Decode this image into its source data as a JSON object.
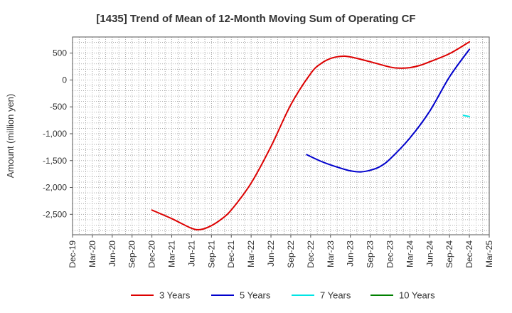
{
  "chart_data": {
    "type": "line",
    "title": "[1435]  Trend of Mean of 12-Month Moving Sum of Operating CF",
    "xlabel": "",
    "ylabel": "Amount (million yen)",
    "ylim": [
      -2880,
      800
    ],
    "y_ticks": [
      500,
      0,
      -500,
      -1000,
      -1500,
      -2000,
      -2500
    ],
    "y_tick_labels": [
      "500",
      "0",
      "-500",
      "-1,000",
      "-1,500",
      "-2,000",
      "-2,500"
    ],
    "x_ticks": [
      "Dec-19",
      "Mar-20",
      "Jun-20",
      "Sep-20",
      "Dec-20",
      "Mar-21",
      "Jun-21",
      "Sep-21",
      "Dec-21",
      "Mar-22",
      "Jun-22",
      "Sep-22",
      "Dec-22",
      "Mar-23",
      "Jun-23",
      "Sep-23",
      "Dec-23",
      "Mar-24",
      "Jun-24",
      "Sep-24",
      "Dec-24",
      "Mar-25"
    ],
    "legend_position": "bottom",
    "grid": true,
    "series": [
      {
        "name": "3 Years",
        "color": "#dd0000",
        "points": [
          [
            4,
            -2420
          ],
          [
            5,
            -2580
          ],
          [
            6,
            -2760
          ],
          [
            6.5,
            -2780
          ],
          [
            7,
            -2710
          ],
          [
            7.5,
            -2590
          ],
          [
            8,
            -2420
          ],
          [
            9,
            -1920
          ],
          [
            10,
            -1240
          ],
          [
            11,
            -460
          ],
          [
            12,
            120
          ],
          [
            12.5,
            300
          ],
          [
            13,
            400
          ],
          [
            13.5,
            440
          ],
          [
            14,
            430
          ],
          [
            15,
            340
          ],
          [
            16,
            240
          ],
          [
            16.5,
            220
          ],
          [
            17,
            230
          ],
          [
            17.5,
            270
          ],
          [
            18,
            340
          ],
          [
            19,
            490
          ],
          [
            20,
            710
          ]
        ]
      },
      {
        "name": "5 Years",
        "color": "#0000cc",
        "points": [
          [
            11.8,
            -1390
          ],
          [
            12.5,
            -1510
          ],
          [
            13,
            -1580
          ],
          [
            13.5,
            -1640
          ],
          [
            14,
            -1690
          ],
          [
            14.5,
            -1710
          ],
          [
            15,
            -1680
          ],
          [
            15.5,
            -1610
          ],
          [
            16,
            -1470
          ],
          [
            17,
            -1080
          ],
          [
            18,
            -580
          ],
          [
            19,
            60
          ],
          [
            20,
            570
          ]
        ]
      },
      {
        "name": "7 Years",
        "color": "#00e5e5",
        "points": [
          [
            19.7,
            -660
          ],
          [
            20,
            -680
          ]
        ]
      },
      {
        "name": "10 Years",
        "color": "#008000",
        "points": []
      }
    ]
  }
}
